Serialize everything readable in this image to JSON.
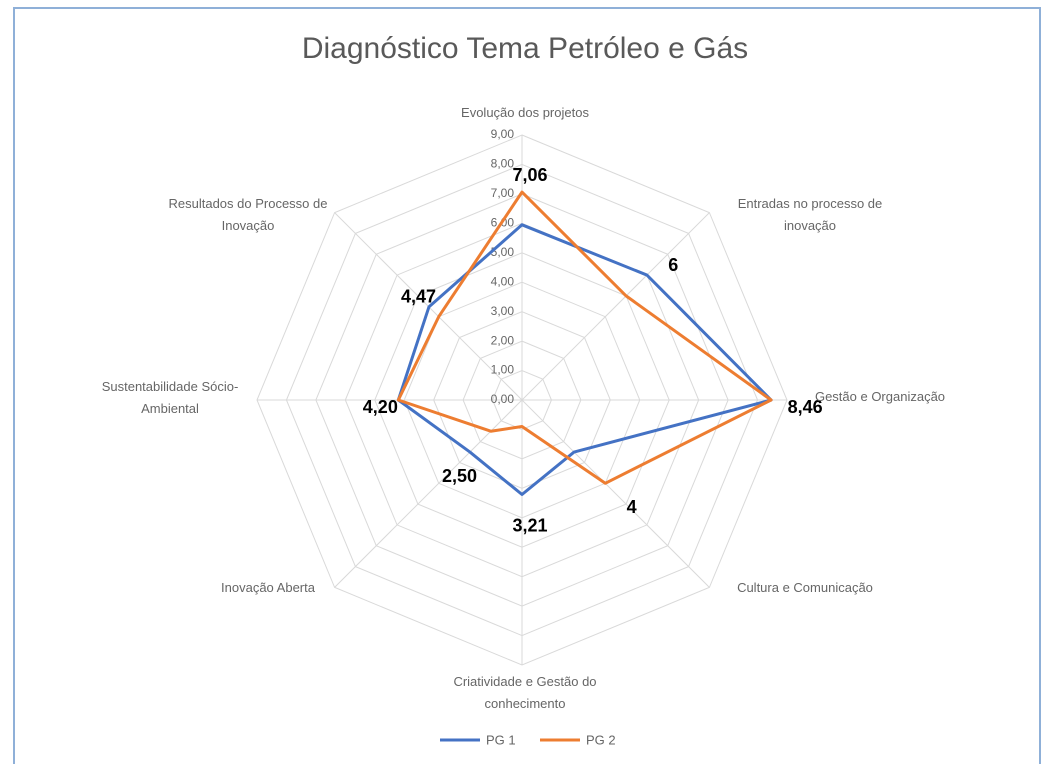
{
  "chart_data": {
    "type": "radar",
    "title": "Diagnóstico Tema Petróleo e Gás",
    "categories": [
      "Evolução dos projetos",
      "Entradas no processo de inovação",
      "Gestão e Organização",
      "Cultura e Comunicação",
      "Criatividade e Gestão do conhecimento",
      "Inovação Aberta",
      "Sustentabilidade Sócio-Ambiental",
      "Resultados do Processo de Inovação"
    ],
    "series": [
      {
        "name": "PG 1",
        "color": "#4472c4",
        "values": [
          5.95,
          6,
          8.46,
          2.5,
          3.21,
          2.5,
          4.2,
          4.47
        ],
        "value_labels": [
          null,
          "6",
          "8,46",
          null,
          "3,21",
          "2,50",
          "4,20",
          "4,47"
        ]
      },
      {
        "name": "PG 2",
        "color": "#ed7d31",
        "values": [
          7.06,
          5.0,
          8.46,
          4,
          0.9,
          1.5,
          4.2,
          4.0
        ],
        "value_labels": [
          "7,06",
          null,
          null,
          "4",
          null,
          null,
          null,
          null
        ]
      }
    ],
    "ylim": [
      0,
      9
    ],
    "yticks": [
      {
        "value": 0,
        "label": "0,00"
      },
      {
        "value": 1,
        "label": "1,00"
      },
      {
        "value": 2,
        "label": "2,00"
      },
      {
        "value": 3,
        "label": "3,00"
      },
      {
        "value": 4,
        "label": "4,00"
      },
      {
        "value": 5,
        "label": "5,00"
      },
      {
        "value": 6,
        "label": "6,00"
      },
      {
        "value": 7,
        "label": "7,00"
      },
      {
        "value": 8,
        "label": "8,00"
      },
      {
        "value": 9,
        "label": "9,00"
      }
    ],
    "grid": true,
    "legend": "bottom"
  }
}
